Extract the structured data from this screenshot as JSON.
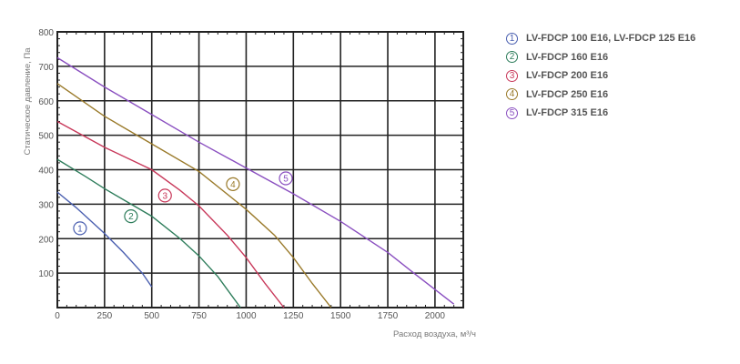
{
  "chart_data": {
    "type": "line",
    "title": "",
    "xlabel": "Расход воздуха, м³/ч",
    "ylabel": "Статическое давление, Па",
    "xlim": [
      0,
      2150
    ],
    "ylim": [
      0,
      800
    ],
    "xticks": [
      0,
      250,
      500,
      750,
      1000,
      1250,
      1500,
      1750,
      2000
    ],
    "xtick_labels": [
      "0",
      "250",
      "500",
      "750",
      "1000",
      "1250",
      "1500",
      "1750",
      "2000"
    ],
    "yticks": [
      100,
      200,
      300,
      400,
      500,
      600,
      700,
      800
    ],
    "ytick_labels": [
      "100",
      "200",
      "300",
      "400",
      "500",
      "600",
      "700",
      "800"
    ],
    "grid": true,
    "legend_position": "right",
    "series": [
      {
        "name": "LV-FDCP 100 E16, LV-FDCP 125 E16",
        "marker": "1",
        "color": "#4a5fb0",
        "label_at": [
          120,
          230
        ],
        "x": [
          0,
          100,
          250,
          350,
          450,
          500
        ],
        "y": [
          335,
          290,
          215,
          160,
          100,
          60
        ]
      },
      {
        "name": "LV-FDCP 160 E16",
        "marker": "2",
        "color": "#2e7d5b",
        "label_at": [
          390,
          265
        ],
        "x": [
          0,
          150,
          250,
          500,
          650,
          750,
          850,
          970
        ],
        "y": [
          430,
          380,
          345,
          265,
          200,
          150,
          90,
          0
        ]
      },
      {
        "name": "LV-FDCP 200 E16",
        "marker": "3",
        "color": "#c8385a",
        "label_at": [
          570,
          325
        ],
        "x": [
          0,
          250,
          500,
          650,
          750,
          900,
          1000,
          1100,
          1200
        ],
        "y": [
          540,
          465,
          400,
          340,
          295,
          210,
          145,
          70,
          0
        ]
      },
      {
        "name": "LV-FDCP 250 E16",
        "marker": "4",
        "color": "#9a7a2a",
        "label_at": [
          930,
          358
        ],
        "x": [
          0,
          250,
          500,
          750,
          1000,
          1150,
          1250,
          1350,
          1450
        ],
        "y": [
          650,
          555,
          475,
          395,
          285,
          210,
          145,
          70,
          0
        ]
      },
      {
        "name": "LV-FDCP 315 E16",
        "marker": "5",
        "color": "#8a4fc0",
        "label_at": [
          1210,
          375
        ],
        "x": [
          0,
          250,
          500,
          750,
          1000,
          1250,
          1500,
          1750,
          1900,
          2100
        ],
        "y": [
          725,
          640,
          560,
          480,
          405,
          330,
          250,
          160,
          95,
          10
        ]
      }
    ]
  }
}
